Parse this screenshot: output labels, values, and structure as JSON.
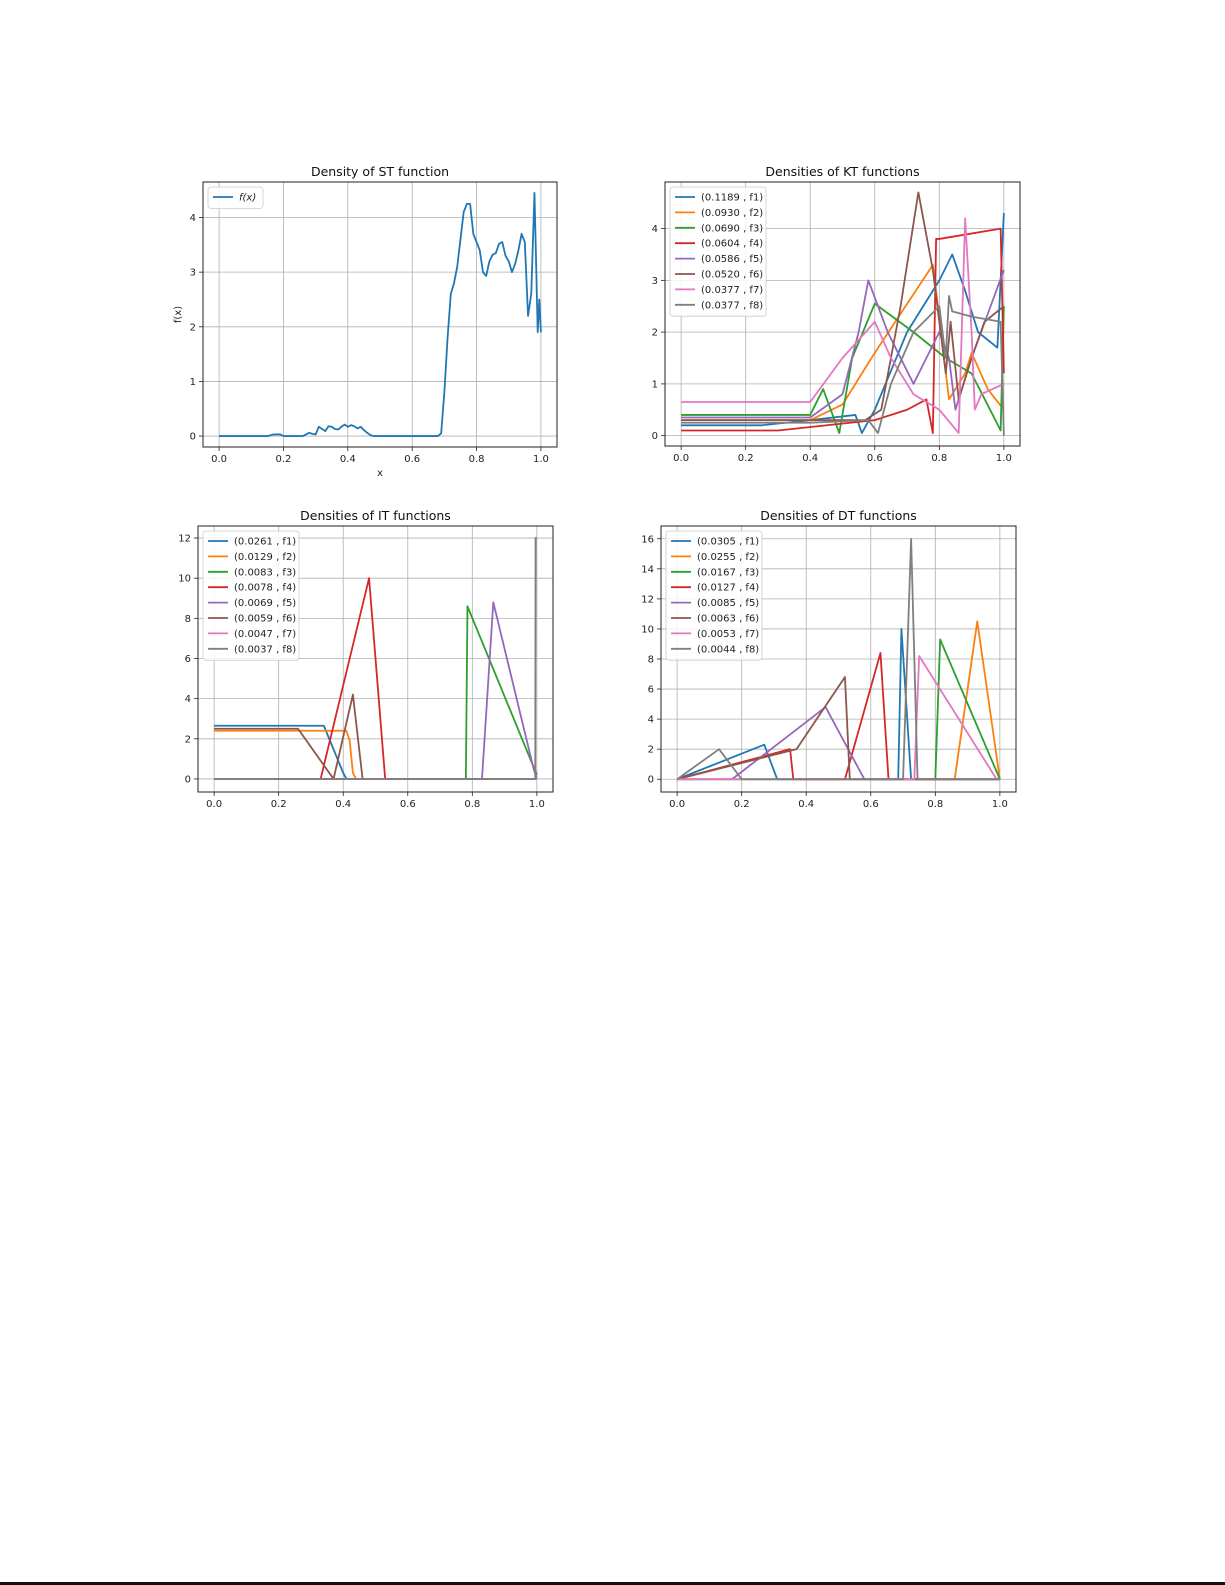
{
  "colors": {
    "palette": [
      "#1f77b4",
      "#ff7f0e",
      "#2ca02c",
      "#d62728",
      "#9467bd",
      "#8c564b",
      "#e377c2",
      "#7f7f7f"
    ]
  },
  "chart_data": [
    {
      "type": "line",
      "title": "Density of ST function",
      "xlabel": "x",
      "ylabel": "f(x)",
      "xlim": [
        -0.05,
        1.05
      ],
      "ylim": [
        -0.2,
        4.65
      ],
      "xticks": [
        "0.0",
        "0.2",
        "0.4",
        "0.6",
        "0.8",
        "1.0"
      ],
      "yticks": [
        "0",
        "1",
        "2",
        "3",
        "4"
      ],
      "grid": true,
      "legend": "upper left",
      "series": [
        {
          "name": "f(x)",
          "x": [
            0.0,
            0.15,
            0.17,
            0.19,
            0.2,
            0.26,
            0.28,
            0.29,
            0.3,
            0.31,
            0.32,
            0.33,
            0.34,
            0.35,
            0.36,
            0.37,
            0.38,
            0.39,
            0.4,
            0.41,
            0.42,
            0.43,
            0.44,
            0.45,
            0.46,
            0.47,
            0.48,
            0.5,
            0.6,
            0.68,
            0.69,
            0.7,
            0.71,
            0.72,
            0.73,
            0.74,
            0.75,
            0.76,
            0.77,
            0.78,
            0.79,
            0.8,
            0.81,
            0.82,
            0.83,
            0.84,
            0.85,
            0.86,
            0.87,
            0.88,
            0.89,
            0.9,
            0.91,
            0.92,
            0.93,
            0.94,
            0.95,
            0.96,
            0.97,
            0.98,
            0.985,
            0.99,
            0.995,
            1.0
          ],
          "y": [
            0.0,
            0.0,
            0.03,
            0.03,
            0.0,
            0.0,
            0.06,
            0.04,
            0.03,
            0.17,
            0.13,
            0.09,
            0.18,
            0.17,
            0.13,
            0.12,
            0.17,
            0.21,
            0.17,
            0.2,
            0.18,
            0.14,
            0.17,
            0.11,
            0.06,
            0.02,
            0.0,
            0.0,
            0.0,
            0.0,
            0.05,
            0.8,
            1.8,
            2.6,
            2.8,
            3.1,
            3.6,
            4.1,
            4.25,
            4.25,
            3.7,
            3.55,
            3.4,
            3.0,
            2.93,
            3.2,
            3.32,
            3.35,
            3.52,
            3.55,
            3.3,
            3.2,
            3.0,
            3.15,
            3.4,
            3.7,
            3.55,
            2.2,
            2.6,
            4.45,
            3.2,
            1.9,
            2.5,
            1.9
          ]
        }
      ]
    },
    {
      "type": "line",
      "title": "Densities of KT functions",
      "xlabel": "",
      "ylabel": "",
      "xlim": [
        -0.05,
        1.05
      ],
      "ylim": [
        -0.2,
        4.9
      ],
      "xticks": [
        "0.0",
        "0.2",
        "0.4",
        "0.6",
        "0.8",
        "1.0"
      ],
      "yticks": [
        "0",
        "1",
        "2",
        "3",
        "4"
      ],
      "grid": true,
      "legend": "upper left",
      "series": [
        {
          "name": "(0.1189 , f1)",
          "x": [
            0.0,
            0.25,
            0.4,
            0.54,
            0.56,
            0.6,
            0.7,
            0.8,
            0.84,
            0.88,
            0.92,
            0.98,
            1.0
          ],
          "y": [
            0.2,
            0.2,
            0.3,
            0.4,
            0.05,
            0.5,
            2.0,
            3.0,
            3.5,
            2.8,
            2.0,
            1.7,
            4.3
          ]
        },
        {
          "name": "(0.0930 , f2)",
          "x": [
            0.0,
            0.4,
            0.5,
            0.6,
            0.78,
            0.79,
            0.83,
            0.88,
            0.9,
            0.95,
            1.0
          ],
          "y": [
            0.3,
            0.3,
            0.6,
            1.6,
            3.3,
            2.8,
            0.7,
            1.2,
            1.6,
            0.9,
            0.5
          ]
        },
        {
          "name": "(0.0690 , f3)",
          "x": [
            0.0,
            0.4,
            0.44,
            0.49,
            0.53,
            0.6,
            0.72,
            0.82,
            0.9,
            0.99,
            1.0
          ],
          "y": [
            0.4,
            0.4,
            0.9,
            0.05,
            1.5,
            2.55,
            2.0,
            1.5,
            1.2,
            0.1,
            2.5
          ]
        },
        {
          "name": "(0.0604 , f4)",
          "x": [
            0.0,
            0.3,
            0.6,
            0.7,
            0.76,
            0.78,
            0.79,
            0.8,
            0.99,
            1.0
          ],
          "y": [
            0.1,
            0.1,
            0.3,
            0.5,
            0.7,
            0.05,
            3.8,
            3.8,
            4.0,
            1.2
          ]
        },
        {
          "name": "(0.0586 , f5)",
          "x": [
            0.0,
            0.4,
            0.5,
            0.55,
            0.58,
            0.64,
            0.72,
            0.8,
            0.83,
            0.85,
            0.9,
            1.0
          ],
          "y": [
            0.35,
            0.35,
            0.8,
            2.0,
            3.0,
            2.0,
            1.0,
            2.0,
            1.5,
            0.5,
            1.5,
            3.2
          ]
        },
        {
          "name": "(0.0520 , f6)",
          "x": [
            0.0,
            0.45,
            0.57,
            0.62,
            0.68,
            0.735,
            0.78,
            0.82,
            0.835,
            0.86,
            0.9,
            0.94,
            1.0
          ],
          "y": [
            0.3,
            0.3,
            0.3,
            0.5,
            2.5,
            4.7,
            3.2,
            1.2,
            2.2,
            0.7,
            1.5,
            2.2,
            2.5
          ]
        },
        {
          "name": "(0.0377 , f7)",
          "x": [
            0.0,
            0.4,
            0.5,
            0.6,
            0.65,
            0.72,
            0.8,
            0.86,
            0.88,
            0.9,
            0.91,
            0.93,
            1.0
          ],
          "y": [
            0.65,
            0.65,
            1.5,
            2.2,
            1.5,
            0.8,
            0.5,
            0.05,
            4.2,
            2.0,
            0.5,
            0.8,
            1.0
          ]
        },
        {
          "name": "(0.0377 , f8)",
          "x": [
            0.0,
            0.4,
            0.58,
            0.61,
            0.65,
            0.72,
            0.8,
            0.82,
            0.83,
            0.84,
            0.9,
            0.99,
            1.0
          ],
          "y": [
            0.25,
            0.25,
            0.3,
            0.05,
            1.0,
            2.0,
            2.5,
            1.5,
            2.7,
            2.4,
            2.3,
            2.2,
            0.0
          ]
        }
      ]
    },
    {
      "type": "line",
      "title": "Densities of IT functions",
      "xlabel": "",
      "ylabel": "",
      "xlim": [
        -0.05,
        1.05
      ],
      "ylim": [
        -0.65,
        12.6
      ],
      "xticks": [
        "0.0",
        "0.2",
        "0.4",
        "0.6",
        "0.8",
        "1.0"
      ],
      "yticks": [
        "0",
        "2",
        "4",
        "6",
        "8",
        "10",
        "12"
      ],
      "grid": true,
      "legend": "upper left",
      "series": [
        {
          "name": "(0.0261 , f1)",
          "x": [
            0.0,
            0.34,
            0.4,
            0.41,
            1.0
          ],
          "y": [
            2.65,
            2.65,
            0.3,
            0.0,
            0.0
          ]
        },
        {
          "name": "(0.0129 , f2)",
          "x": [
            0.0,
            0.41,
            0.42,
            0.43,
            0.44,
            1.0
          ],
          "y": [
            2.4,
            2.4,
            1.9,
            0.3,
            0.0,
            0.0
          ]
        },
        {
          "name": "(0.0083 , f3)",
          "x": [
            0.0,
            0.78,
            0.785,
            1.0
          ],
          "y": [
            0.0,
            0.0,
            8.6,
            0.2
          ]
        },
        {
          "name": "(0.0078 , f4)",
          "x": [
            0.0,
            0.33,
            0.48,
            0.53,
            1.0
          ],
          "y": [
            0.0,
            0.0,
            10.0,
            0.0,
            0.0
          ]
        },
        {
          "name": "(0.0069 , f5)",
          "x": [
            0.0,
            0.83,
            0.865,
            0.99,
            1.0
          ],
          "y": [
            0.0,
            0.0,
            8.8,
            0.5,
            0.0
          ]
        },
        {
          "name": "(0.0059 , f6)",
          "x": [
            0.0,
            0.26,
            0.37,
            0.43,
            0.46,
            1.0
          ],
          "y": [
            2.5,
            2.5,
            0.0,
            4.2,
            0.0,
            0.0
          ]
        },
        {
          "name": "(0.0047 , f7)",
          "x": [
            0.0,
            1.0
          ],
          "y": [
            0.0,
            0.0
          ]
        },
        {
          "name": "(0.0037 , f8)",
          "x": [
            0.0,
            0.995,
            0.996,
            1.0
          ],
          "y": [
            0.0,
            0.0,
            12.0,
            12.0
          ]
        }
      ]
    },
    {
      "type": "line",
      "title": "Densities of DT functions",
      "xlabel": "",
      "ylabel": "",
      "xlim": [
        -0.05,
        1.05
      ],
      "ylim": [
        -0.85,
        16.85
      ],
      "xticks": [
        "0.0",
        "0.2",
        "0.4",
        "0.6",
        "0.8",
        "1.0"
      ],
      "yticks": [
        "0",
        "2",
        "4",
        "6",
        "8",
        "10",
        "12",
        "14",
        "16"
      ],
      "grid": true,
      "legend": "upper left",
      "series": [
        {
          "name": "(0.0305 , f1)",
          "x": [
            0.0,
            0.27,
            0.31,
            0.685,
            0.695,
            0.725,
            1.0
          ],
          "y": [
            0.0,
            2.3,
            0.0,
            0.0,
            10.0,
            0.0,
            0.0
          ]
        },
        {
          "name": "(0.0255 , f2)",
          "x": [
            0.0,
            0.86,
            0.93,
            1.0
          ],
          "y": [
            0.0,
            0.0,
            10.5,
            0.0
          ]
        },
        {
          "name": "(0.0167 , f3)",
          "x": [
            0.0,
            0.8,
            0.815,
            1.0
          ],
          "y": [
            0.0,
            0.0,
            9.3,
            0.0
          ]
        },
        {
          "name": "(0.0127 , f4)",
          "x": [
            0.0,
            0.35,
            0.36,
            0.52,
            0.63,
            0.655,
            1.0
          ],
          "y": [
            0.0,
            2.0,
            0.0,
            0.0,
            8.4,
            0.0,
            0.0
          ]
        },
        {
          "name": "(0.0085 , f5)",
          "x": [
            0.0,
            0.17,
            0.46,
            0.58,
            1.0
          ],
          "y": [
            0.0,
            0.0,
            4.8,
            0.0,
            0.0
          ]
        },
        {
          "name": "(0.0063 , f6)",
          "x": [
            0.0,
            0.37,
            0.52,
            0.535,
            1.0
          ],
          "y": [
            0.0,
            2.0,
            6.8,
            0.0,
            0.0
          ]
        },
        {
          "name": "(0.0053 , f7)",
          "x": [
            0.0,
            0.735,
            0.75,
            0.99,
            1.0
          ],
          "y": [
            0.0,
            0.0,
            8.2,
            0.0,
            0.0
          ]
        },
        {
          "name": "(0.0044 , f8)",
          "x": [
            0.0,
            0.13,
            0.2,
            0.7,
            0.725,
            0.745,
            1.0
          ],
          "y": [
            0.0,
            2.0,
            0.0,
            0.0,
            16.0,
            0.0,
            0.0
          ]
        }
      ]
    }
  ]
}
